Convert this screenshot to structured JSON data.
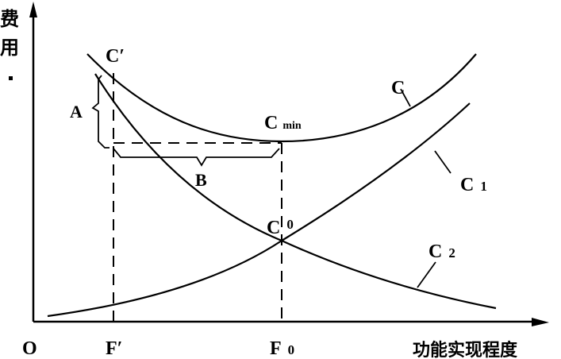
{
  "axes": {
    "y_label_chars": [
      "费",
      "用"
    ],
    "x_label": "功能实现程度",
    "origin": "O"
  },
  "x_ticks": {
    "f_prime": "F′",
    "f0_main": "F",
    "f0_sub": "0"
  },
  "curves": {
    "total_cost": "C",
    "c1_main": "C",
    "c1_sub": "1",
    "c2_main": "C",
    "c2_sub": "2"
  },
  "points": {
    "c_prime": "C′",
    "cmin_main": "C",
    "cmin_sub": "min",
    "c0_main": "C",
    "c0_sub": "0"
  },
  "braces": {
    "a": "A",
    "b": "B"
  }
}
